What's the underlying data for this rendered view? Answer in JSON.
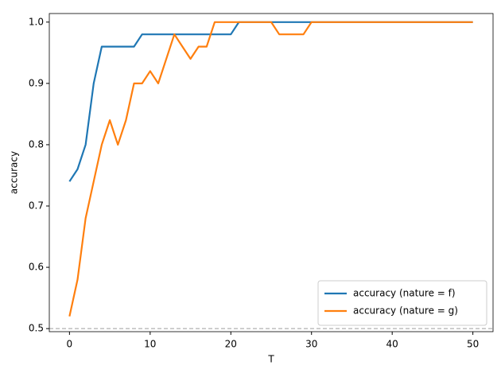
{
  "chart_data": {
    "type": "line",
    "xlabel": "T",
    "ylabel": "accuracy",
    "x": [
      0,
      1,
      2,
      3,
      4,
      5,
      6,
      7,
      8,
      9,
      10,
      11,
      12,
      13,
      14,
      15,
      16,
      17,
      18,
      19,
      20,
      21,
      22,
      23,
      24,
      25,
      26,
      27,
      28,
      29,
      30,
      31,
      32,
      33,
      34,
      35,
      36,
      37,
      38,
      39,
      40,
      41,
      42,
      43,
      44,
      45,
      46,
      47,
      48,
      49,
      50
    ],
    "series": [
      {
        "name": "accuracy (nature = f)",
        "color": "#1f77b4",
        "values": [
          0.74,
          0.76,
          0.8,
          0.9,
          0.96,
          0.96,
          0.96,
          0.96,
          0.96,
          0.98,
          0.98,
          0.98,
          0.98,
          0.98,
          0.98,
          0.98,
          0.98,
          0.98,
          0.98,
          0.98,
          0.98,
          1.0,
          1.0,
          1.0,
          1.0,
          1.0,
          1.0,
          1.0,
          1.0,
          1.0,
          1.0,
          1.0,
          1.0,
          1.0,
          1.0,
          1.0,
          1.0,
          1.0,
          1.0,
          1.0,
          1.0,
          1.0,
          1.0,
          1.0,
          1.0,
          1.0,
          1.0,
          1.0,
          1.0,
          1.0,
          1.0
        ]
      },
      {
        "name": "accuracy (nature = g)",
        "color": "#ff7f0e",
        "values": [
          0.52,
          0.58,
          0.68,
          0.74,
          0.8,
          0.84,
          0.8,
          0.84,
          0.9,
          0.9,
          0.92,
          0.9,
          0.94,
          0.98,
          0.96,
          0.94,
          0.96,
          0.96,
          1.0,
          1.0,
          1.0,
          1.0,
          1.0,
          1.0,
          1.0,
          1.0,
          0.98,
          0.98,
          0.98,
          0.98,
          1.0,
          1.0,
          1.0,
          1.0,
          1.0,
          1.0,
          1.0,
          1.0,
          1.0,
          1.0,
          1.0,
          1.0,
          1.0,
          1.0,
          1.0,
          1.0,
          1.0,
          1.0,
          1.0,
          1.0,
          1.0
        ]
      }
    ],
    "reference_line": {
      "value": 0.5,
      "color": "#b0b0b0"
    },
    "xlim": [
      -2.5,
      52.5
    ],
    "xticks": [
      0,
      10,
      20,
      30,
      40,
      50
    ],
    "ylim": [
      0.495,
      1.014
    ],
    "yticks": [
      0.5,
      0.6,
      0.7,
      0.8,
      0.9,
      {
        "value": 1.0,
        "label": "1.0"
      }
    ],
    "legend": "lower right"
  }
}
